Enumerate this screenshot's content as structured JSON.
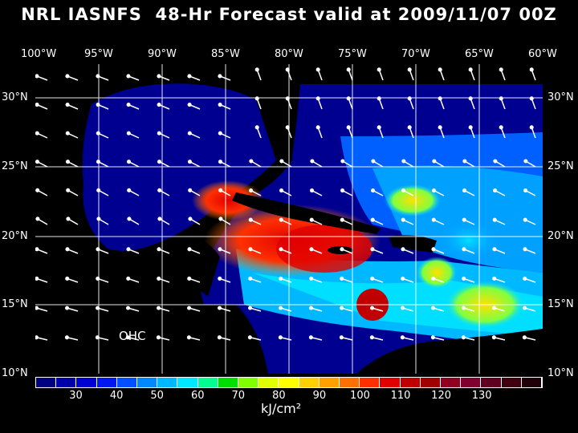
{
  "title": "NRL IASNFS  48-Hr Forecast valid at 2009/11/07 00Z",
  "map_label": "OHC",
  "unit": "kJ/cm²",
  "lon_labels": [
    "100°W",
    "95°W",
    "90°W",
    "85°W",
    "80°W",
    "75°W",
    "70°W",
    "65°W",
    "60°W"
  ],
  "lat_labels": [
    "30°N",
    "25°N",
    "20°N",
    "15°N",
    "10°N"
  ],
  "colorbar": {
    "ticks": [
      "30",
      "40",
      "50",
      "60",
      "70",
      "80",
      "90",
      "100",
      "110",
      "120",
      "130"
    ],
    "colors": [
      "#000080",
      "#0000a8",
      "#0000d0",
      "#0018f0",
      "#0050ff",
      "#0088ff",
      "#00b8ff",
      "#00e8ff",
      "#00ff90",
      "#00e000",
      "#80ff00",
      "#e0ff00",
      "#ffff00",
      "#ffd000",
      "#ffa000",
      "#ff7000",
      "#ff3000",
      "#e00000",
      "#c00000",
      "#a00000",
      "#900020",
      "#800030",
      "#600020",
      "#400010",
      "#200008"
    ]
  },
  "colors": {
    "land": "#000000",
    "ocean_low": "#000080",
    "ocean_high": "#ff0000"
  }
}
